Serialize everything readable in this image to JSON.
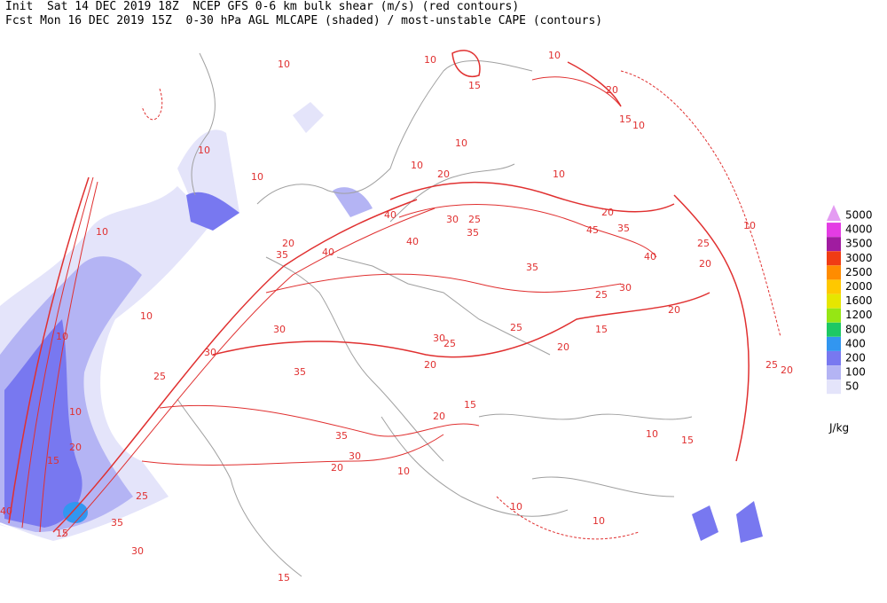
{
  "header": {
    "line1": "Init  Sat 14 DEC 2019 18Z  NCEP GFS 0-6 km bulk shear (m/s) (red contours)",
    "line2": "Fcst Mon 16 DEC 2019 15Z  0-30 hPa AGL MLCAPE (shaded) / most-unstable CAPE (contours)"
  },
  "legend": {
    "levels": [
      {
        "value": 5000,
        "color": "#e49cf2"
      },
      {
        "value": 4000,
        "color": "#e43ce4"
      },
      {
        "value": 3500,
        "color": "#a01ca0"
      },
      {
        "value": 3000,
        "color": "#f03c14"
      },
      {
        "value": 2500,
        "color": "#ff8c00"
      },
      {
        "value": 2000,
        "color": "#ffc800"
      },
      {
        "value": 1600,
        "color": "#e6e600"
      },
      {
        "value": 1200,
        "color": "#96e614"
      },
      {
        "value": 800,
        "color": "#1ec864"
      },
      {
        "value": 400,
        "color": "#3296f0"
      },
      {
        "value": 200,
        "color": "#7878f0"
      },
      {
        "value": 100,
        "color": "#b4b4f4"
      },
      {
        "value": 50,
        "color": "#e4e4fa"
      }
    ],
    "unit": "J/kg"
  },
  "contour_labels": [
    10,
    10,
    15,
    10,
    20,
    15,
    10,
    10,
    10,
    20,
    10,
    20,
    10,
    10,
    10,
    20,
    35,
    40,
    40,
    40,
    30,
    25,
    35,
    45,
    35,
    40,
    25,
    20,
    35,
    25,
    30,
    20,
    15,
    25,
    20,
    30,
    25,
    10,
    10,
    25,
    30,
    30,
    35,
    20,
    20,
    15,
    35,
    30,
    20,
    10,
    15,
    20,
    25,
    40,
    15,
    30,
    35,
    15,
    10,
    10,
    10,
    15,
    25,
    20,
    10,
    10
  ]
}
